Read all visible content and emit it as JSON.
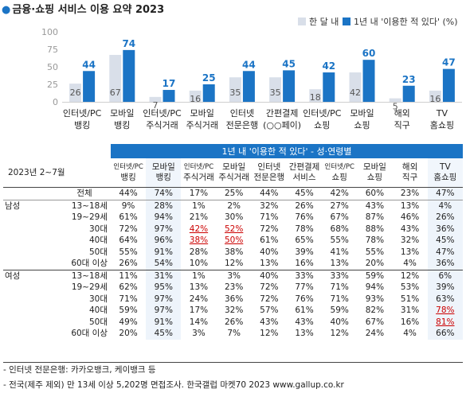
{
  "title": "금융·쇼핑 서비스 이용 요약 2023",
  "title_bullet": "●",
  "legend": {
    "s1": "한 달 내",
    "s2": "1년 내 '이용한 적 있다' (%)",
    "c1": "#d9dfe9",
    "c2": "#1b74c5"
  },
  "chart_data": {
    "type": "bar",
    "title": "금융·쇼핑 서비스 이용 요약 2023",
    "categories": [
      "인터넷/PC 뱅킹",
      "모바일 뱅킹",
      "인터넷/PC 주식거래",
      "모바일 주식거래",
      "인터넷 전문은행",
      "간편결제 (○○페이)",
      "인터넷/PC 쇼핑",
      "모바일 쇼핑",
      "해외 직구",
      "TV 홈쇼핑"
    ],
    "category_lines": [
      [
        "인터넷/PC",
        "뱅킹"
      ],
      [
        "모바일",
        "뱅킹"
      ],
      [
        "인터넷/PC",
        "주식거래"
      ],
      [
        "모바일",
        "주식거래"
      ],
      [
        "인터넷",
        "전문은행"
      ],
      [
        "간편결제",
        "(○○페이)"
      ],
      [
        "인터넷/PC",
        "쇼핑"
      ],
      [
        "모바일",
        "쇼핑"
      ],
      [
        "해외",
        "직구"
      ],
      [
        "TV",
        "홈쇼핑"
      ]
    ],
    "series": [
      {
        "name": "한 달 내",
        "values": [
          26,
          67,
          7,
          16,
          35,
          35,
          18,
          42,
          5,
          16
        ],
        "color": "#d9dfe9"
      },
      {
        "name": "1년 내 '이용한 적 있다' (%)",
        "values": [
          44,
          74,
          17,
          25,
          44,
          45,
          42,
          60,
          23,
          47
        ],
        "color": "#1b74c5"
      }
    ],
    "ylim": [
      0,
      100
    ],
    "yticks": [
      0,
      25,
      50,
      75,
      100
    ],
    "grid": false,
    "legend_position": "top-right"
  },
  "table": {
    "banner": "1년 내 '이용한 적 있다'",
    "banner_sub": "- 성·연령별",
    "date": "2023년 2~7월",
    "columns": [
      {
        "l1": "인터넷/PC",
        "l2": "뱅킹",
        "small": true
      },
      {
        "l1": "모바일",
        "l2": "뱅킹",
        "small": false
      },
      {
        "l1": "인터넷/PC",
        "l2": "주식거래",
        "small": true
      },
      {
        "l1": "모바일",
        "l2": "주식거래",
        "small": false
      },
      {
        "l1": "인터넷",
        "l2": "전문은행",
        "small": false
      },
      {
        "l1": "간편결제",
        "l2": "서비스",
        "small": false
      },
      {
        "l1": "인터넷/PC",
        "l2": "쇼핑",
        "small": true
      },
      {
        "l1": "모바일",
        "l2": "쇼핑",
        "small": false
      },
      {
        "l1": "해외",
        "l2": "직구",
        "small": false
      },
      {
        "l1": "TV",
        "l2": "홈쇼핑",
        "small": false
      }
    ],
    "rows": [
      {
        "group": "",
        "label": "전체",
        "values": [
          "44%",
          "74%",
          "17%",
          "25%",
          "44%",
          "45%",
          "42%",
          "60%",
          "23%",
          "47%"
        ],
        "red": []
      },
      {
        "group": "남성",
        "label": "13~18세",
        "values": [
          "9%",
          "28%",
          "1%",
          "2%",
          "32%",
          "26%",
          "27%",
          "43%",
          "13%",
          "4%"
        ],
        "red": []
      },
      {
        "group": "",
        "label": "19~29세",
        "values": [
          "61%",
          "94%",
          "21%",
          "30%",
          "71%",
          "76%",
          "67%",
          "87%",
          "46%",
          "26%"
        ],
        "red": []
      },
      {
        "group": "",
        "label": "30대",
        "values": [
          "72%",
          "97%",
          "42%",
          "52%",
          "72%",
          "78%",
          "68%",
          "88%",
          "43%",
          "36%"
        ],
        "red": [
          2,
          3
        ]
      },
      {
        "group": "",
        "label": "40대",
        "values": [
          "64%",
          "96%",
          "38%",
          "50%",
          "61%",
          "65%",
          "55%",
          "78%",
          "32%",
          "45%"
        ],
        "red": [
          2,
          3
        ]
      },
      {
        "group": "",
        "label": "50대",
        "values": [
          "55%",
          "91%",
          "28%",
          "38%",
          "40%",
          "39%",
          "41%",
          "55%",
          "13%",
          "47%"
        ],
        "red": []
      },
      {
        "group": "",
        "label": "60대 이상",
        "values": [
          "26%",
          "54%",
          "10%",
          "12%",
          "13%",
          "16%",
          "13%",
          "20%",
          "4%",
          "36%"
        ],
        "red": []
      },
      {
        "group": "여성",
        "label": "13~18세",
        "values": [
          "11%",
          "31%",
          "1%",
          "3%",
          "40%",
          "33%",
          "33%",
          "59%",
          "12%",
          "6%"
        ],
        "red": []
      },
      {
        "group": "",
        "label": "19~29세",
        "values": [
          "62%",
          "95%",
          "13%",
          "23%",
          "72%",
          "77%",
          "71%",
          "94%",
          "53%",
          "39%"
        ],
        "red": []
      },
      {
        "group": "",
        "label": "30대",
        "values": [
          "71%",
          "97%",
          "24%",
          "36%",
          "72%",
          "76%",
          "71%",
          "93%",
          "51%",
          "63%"
        ],
        "red": []
      },
      {
        "group": "",
        "label": "40대",
        "values": [
          "59%",
          "97%",
          "17%",
          "32%",
          "57%",
          "61%",
          "59%",
          "82%",
          "31%",
          "78%"
        ],
        "red": [
          9
        ]
      },
      {
        "group": "",
        "label": "50대",
        "values": [
          "49%",
          "91%",
          "14%",
          "26%",
          "43%",
          "43%",
          "40%",
          "67%",
          "16%",
          "81%"
        ],
        "red": [
          9
        ]
      },
      {
        "group": "",
        "label": "60대 이상",
        "values": [
          "20%",
          "45%",
          "3%",
          "7%",
          "12%",
          "13%",
          "12%",
          "24%",
          "4%",
          "66%"
        ],
        "red": []
      }
    ]
  },
  "notes": [
    "- 인터넷 전문은행: 카카오뱅크, 케이뱅크 등",
    "- 전국(제주 제외) 만 13세 이상 5,202명 면접조사. 한국갤럽 마켓70 2023 www.gallup.co.kr"
  ]
}
